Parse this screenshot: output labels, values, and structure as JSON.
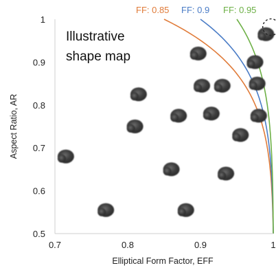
{
  "chart_data": {
    "type": "scatter",
    "annotation_lines": [
      "Illustrative",
      "shape map"
    ],
    "xlabel": "Elliptical Form Factor, EFF",
    "ylabel": "Aspect Ratio, AR",
    "xlim": [
      0.7,
      1.0
    ],
    "ylim": [
      0.5,
      1.0
    ],
    "x_ticks": [
      0.7,
      0.8,
      0.9,
      1
    ],
    "x_tick_labels": [
      "0.7",
      "0.8",
      "0.9",
      "1"
    ],
    "y_ticks": [
      0.5,
      0.6,
      0.7,
      0.8,
      0.9,
      1
    ],
    "y_tick_labels": [
      "0.5",
      "0.6",
      "0.7",
      "0.8",
      "0.9",
      "1"
    ],
    "grid": false,
    "curves": [
      {
        "label": "FF: 0.85",
        "ff": 0.85,
        "color": "#e07b39"
      },
      {
        "label": "FF: 0.9",
        "ff": 0.9,
        "color": "#4a7cc6"
      },
      {
        "label": "FF: 0.95",
        "ff": 0.95,
        "color": "#6db046"
      }
    ],
    "points": [
      {
        "x": 0.715,
        "y": 0.68
      },
      {
        "x": 0.77,
        "y": 0.555
      },
      {
        "x": 0.81,
        "y": 0.75
      },
      {
        "x": 0.815,
        "y": 0.825
      },
      {
        "x": 0.86,
        "y": 0.65
      },
      {
        "x": 0.87,
        "y": 0.775
      },
      {
        "x": 0.88,
        "y": 0.555
      },
      {
        "x": 0.897,
        "y": 0.92
      },
      {
        "x": 0.902,
        "y": 0.845
      },
      {
        "x": 0.93,
        "y": 0.845
      },
      {
        "x": 0.915,
        "y": 0.78
      },
      {
        "x": 0.935,
        "y": 0.64
      },
      {
        "x": 0.955,
        "y": 0.73
      },
      {
        "x": 0.975,
        "y": 0.9
      },
      {
        "x": 0.978,
        "y": 0.85
      },
      {
        "x": 0.98,
        "y": 0.775
      },
      {
        "x": 0.99,
        "y": 0.965
      }
    ],
    "highlight_point": {
      "x": 0.995,
      "y": 0.98
    }
  }
}
